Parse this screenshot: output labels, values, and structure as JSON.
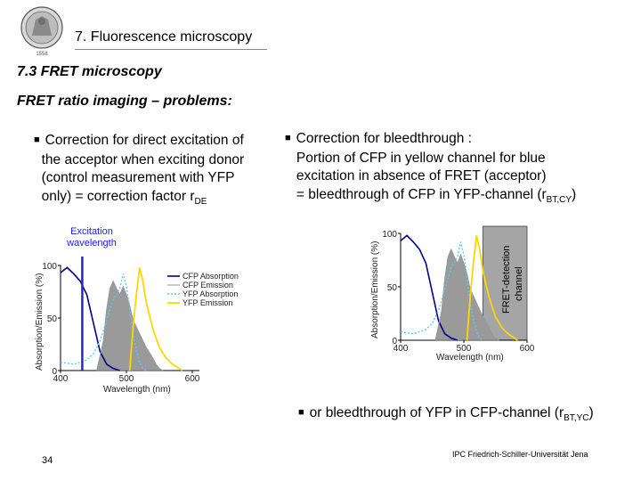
{
  "header": {
    "chapter_title": "7. Fluorescence microscopy",
    "seal_text": "1558"
  },
  "section_title": "7.3 FRET microscopy",
  "subtitle": "FRET ratio imaging – problems:",
  "left_bullet": {
    "line1": "Correction for direct excitation of",
    "line2": "the acceptor when exciting donor",
    "line3": "(control measurement with YFP",
    "line4": "only) = correction factor r",
    "sub": "DE"
  },
  "right_bullet": {
    "line1": "Correction for bleedthrough :",
    "line2": "Portion of CFP in yellow channel for blue",
    "line3": "excitation in absence of FRET (acceptor)",
    "line4": "= bleedthrough of CFP in YFP-channel (r",
    "sub": "BT,CY",
    "tail": ")"
  },
  "bottom_bullet": {
    "text": "or bleedthrough of YFP in CFP-channel (r",
    "sub": "BT,YC",
    "tail": ")"
  },
  "excitation_label": {
    "line1": "Excitation",
    "line2": "wavelength"
  },
  "fret_channel_label": {
    "line1": "FRET-detection",
    "line2": "channel"
  },
  "chart_data": [
    {
      "type": "line",
      "ylabel": "Absorption/Emission (%)",
      "xlabel": "Wavelength (nm)",
      "xlim": [
        400,
        600
      ],
      "ylim": [
        0,
        100
      ],
      "x_ticks": [
        "400",
        "500",
        "600"
      ],
      "y_ticks": [
        "0",
        "50",
        "100"
      ],
      "legend": [
        "CFP Absorption",
        "CFP Emission",
        "YFP Absorption",
        "YFP Emission"
      ],
      "legend_position": "top-right",
      "marker_line_nm": 433,
      "colors": {
        "cfp_abs": "#00008b",
        "cfp_em": "#9a9a9a",
        "yfp_abs": "#5bc8f5",
        "yfp_em": "#ffd700",
        "marker": "#2a2ab0"
      },
      "series": [
        {
          "name": "CFP Absorption",
          "x": [
            400,
            410,
            420,
            430,
            440,
            450,
            460,
            470,
            480,
            490
          ],
          "values": [
            93,
            98,
            92,
            85,
            72,
            45,
            18,
            6,
            2,
            0
          ]
        },
        {
          "name": "CFP Emission",
          "x": [
            455,
            465,
            470,
            475,
            480,
            485,
            490,
            495,
            500,
            505,
            510,
            520,
            530,
            540,
            545,
            550,
            555
          ],
          "values": [
            0,
            28,
            58,
            78,
            85,
            78,
            72,
            80,
            72,
            62,
            48,
            35,
            22,
            12,
            6,
            2,
            0
          ]
        },
        {
          "name": "YFP Absorption",
          "x": [
            400,
            420,
            440,
            450,
            460,
            470,
            480,
            490,
            495,
            500,
            505,
            510,
            515,
            520,
            525,
            530
          ],
          "values": [
            8,
            6,
            10,
            16,
            28,
            48,
            68,
            78,
            92,
            80,
            60,
            35,
            20,
            8,
            2,
            0
          ]
        },
        {
          "name": "YFP Emission",
          "x": [
            505,
            510,
            515,
            520,
            525,
            530,
            540,
            550,
            560,
            570,
            580,
            585
          ],
          "values": [
            0,
            40,
            72,
            98,
            85,
            65,
            40,
            22,
            12,
            6,
            2,
            0
          ]
        }
      ]
    },
    {
      "type": "line",
      "ylabel": "Absorption/Emission (%)",
      "xlabel": "Wavelength (nm)",
      "xlim": [
        400,
        600
      ],
      "ylim": [
        0,
        100
      ],
      "x_ticks": [
        "400",
        "500",
        "600"
      ],
      "y_ticks": [
        "0",
        "50",
        "100"
      ],
      "band_nm": [
        530,
        600
      ],
      "series": [
        {
          "name": "CFP Absorption",
          "x": [
            400,
            410,
            420,
            430,
            440,
            450,
            460,
            470,
            480,
            490
          ],
          "values": [
            93,
            98,
            92,
            85,
            72,
            45,
            18,
            6,
            2,
            0
          ]
        },
        {
          "name": "CFP Emission",
          "x": [
            455,
            465,
            470,
            475,
            480,
            485,
            490,
            495,
            500,
            505,
            510,
            520,
            530,
            540,
            545,
            550,
            555
          ],
          "values": [
            0,
            28,
            58,
            78,
            85,
            78,
            72,
            80,
            72,
            62,
            48,
            35,
            22,
            12,
            6,
            2,
            0
          ]
        },
        {
          "name": "YFP Absorption",
          "x": [
            400,
            420,
            440,
            450,
            460,
            470,
            480,
            490,
            495,
            500,
            505,
            510,
            515,
            520,
            525,
            530
          ],
          "values": [
            8,
            6,
            10,
            16,
            28,
            48,
            68,
            78,
            92,
            80,
            60,
            35,
            20,
            8,
            2,
            0
          ]
        },
        {
          "name": "YFP Emission",
          "x": [
            505,
            510,
            515,
            520,
            525,
            530,
            540,
            550,
            560,
            570,
            580,
            585
          ],
          "values": [
            0,
            40,
            72,
            98,
            85,
            65,
            40,
            22,
            12,
            6,
            2,
            0
          ]
        }
      ]
    }
  ],
  "page_number": "34",
  "footer": "IPC Friedrich-Schiller-Universität Jena"
}
